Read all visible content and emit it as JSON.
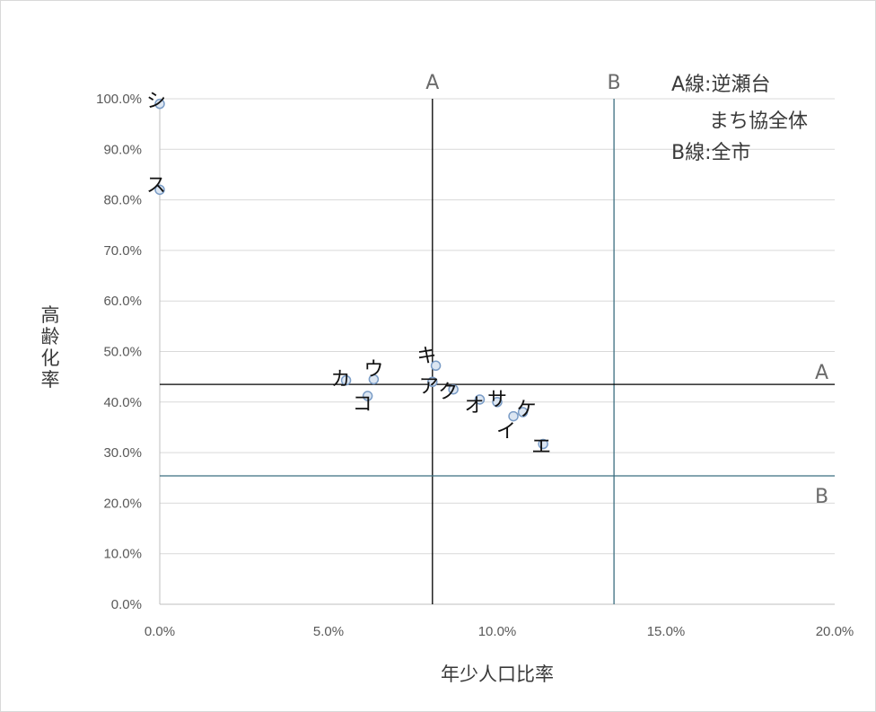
{
  "chart_data": {
    "type": "scatter",
    "xlabel": "年少人口比率",
    "ylabel": "高齢化率",
    "xlim": [
      0,
      0.2
    ],
    "ylim": [
      0,
      1.0
    ],
    "x_ticks": [
      "0.0%",
      "5.0%",
      "10.0%",
      "15.0%",
      "20.0%"
    ],
    "y_ticks": [
      "0.0%",
      "10.0%",
      "20.0%",
      "30.0%",
      "40.0%",
      "50.0%",
      "60.0%",
      "70.0%",
      "80.0%",
      "90.0%",
      "100.0%"
    ],
    "grid": "horizontal",
    "points": [
      {
        "label": "ア",
        "x": 0.0808,
        "y": 0.44
      },
      {
        "label": "イ",
        "x": 0.1048,
        "y": 0.372
      },
      {
        "label": "ウ",
        "x": 0.0634,
        "y": 0.445
      },
      {
        "label": "エ",
        "x": 0.1136,
        "y": 0.317
      },
      {
        "label": "オ",
        "x": 0.0948,
        "y": 0.405
      },
      {
        "label": "カ",
        "x": 0.0552,
        "y": 0.443
      },
      {
        "label": "キ",
        "x": 0.0818,
        "y": 0.472
      },
      {
        "label": "ク",
        "x": 0.087,
        "y": 0.425
      },
      {
        "label": "ケ",
        "x": 0.1076,
        "y": 0.38
      },
      {
        "label": "コ",
        "x": 0.0616,
        "y": 0.412
      },
      {
        "label": "サ",
        "x": 0.1,
        "y": 0.4
      },
      {
        "label": "シ",
        "x": 0.0,
        "y": 0.99
      },
      {
        "label": "ス",
        "x": 0.0,
        "y": 0.82
      }
    ],
    "reference_lines": {
      "A": {
        "x": 0.0808,
        "y": 0.435,
        "color": "#000000"
      },
      "B": {
        "x": 0.1346,
        "y": 0.254,
        "color": "#3b6e80"
      }
    },
    "line_labels": {
      "vertical_A": "A",
      "vertical_B": "B",
      "horizontal_A": "A",
      "horizontal_B": "B"
    },
    "legend": {
      "line1": "A線:逆瀬台",
      "line2": "まち協全体",
      "line3": "B線:全市",
      "placement": "top-right"
    },
    "colors": {
      "marker_fill": "#dce6f2",
      "marker_stroke": "#7a9cc6",
      "grid": "#d9d9d9",
      "axis": "#bfbfbf"
    }
  }
}
